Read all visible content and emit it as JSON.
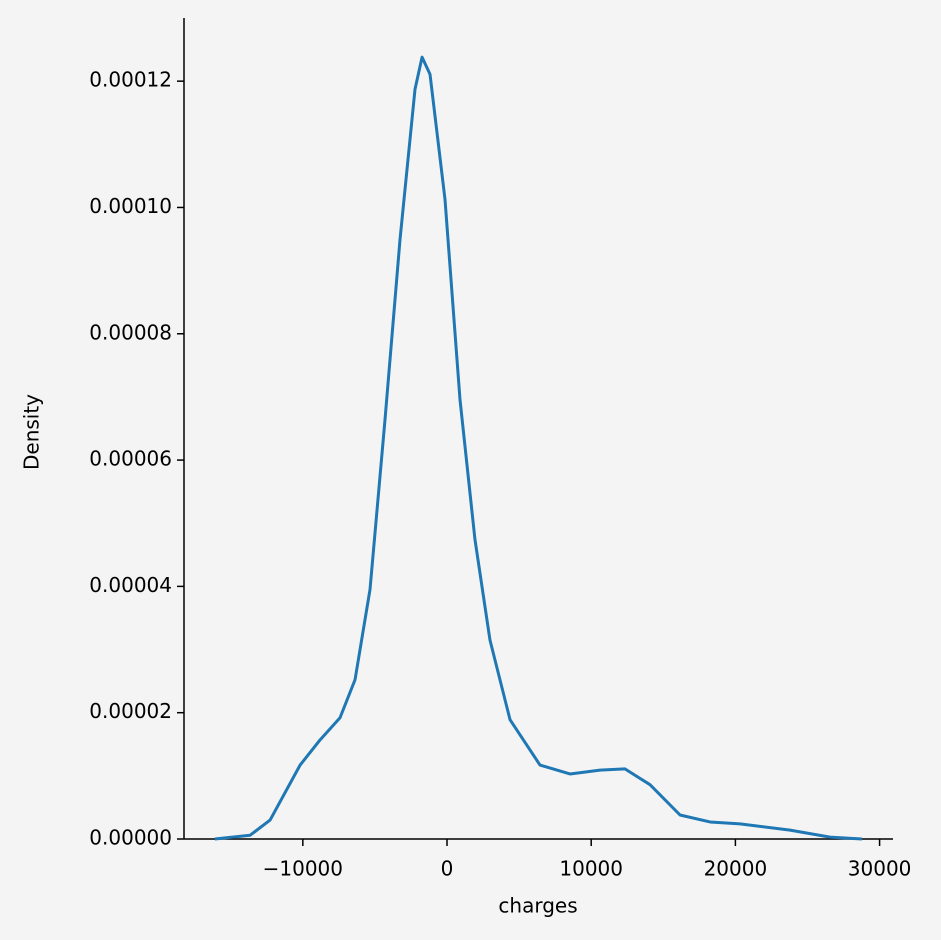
{
  "chart_data": {
    "type": "line",
    "xlabel": "charges",
    "ylabel": "Density",
    "x": [
      -16100,
      -13650,
      -12270,
      -10190,
      -8800,
      -7420,
      -6380,
      -5340,
      -4300,
      -3260,
      -2220,
      -1730,
      -1180,
      -140,
      900,
      1940,
      2980,
      4370,
      6450,
      8530,
      10610,
      12340,
      14080,
      16160,
      18240,
      20320,
      23790,
      26560,
      28780
    ],
    "series": [
      {
        "color": "#1f77b4",
        "values": [
          0,
          6e-07,
          3e-06,
          1.17e-05,
          1.57e-05,
          1.92e-05,
          2.52e-05,
          3.95e-05,
          6.64e-05,
          9.49e-05,
          0.0001187,
          0.0001238,
          0.0001211,
          0.0001013,
          6.96e-05,
          4.74e-05,
          3.15e-05,
          1.89e-05,
          1.17e-05,
          1.03e-05,
          1.09e-05,
          1.11e-05,
          8.6e-06,
          3.8e-06,
          2.7e-06,
          2.4e-06,
          1.4e-06,
          3e-07,
          0
        ]
      }
    ],
    "xlim": [
      -18240,
      30930
    ],
    "ylim": [
      0,
      0.00013
    ],
    "xticks": [
      {
        "value": -10000,
        "label": "−10000"
      },
      0,
      10000,
      20000,
      30000
    ],
    "yticks": [
      {
        "value": 0,
        "label": "0.00000"
      },
      {
        "value": 2e-05,
        "label": "0.00002"
      },
      {
        "value": 4e-05,
        "label": "0.00004"
      },
      {
        "value": 6e-05,
        "label": "0.00006"
      },
      {
        "value": 8e-05,
        "label": "0.00008"
      },
      {
        "value": 0.0001,
        "label": "0.00010"
      },
      {
        "value": 0.00012,
        "label": "0.00012"
      }
    ]
  }
}
